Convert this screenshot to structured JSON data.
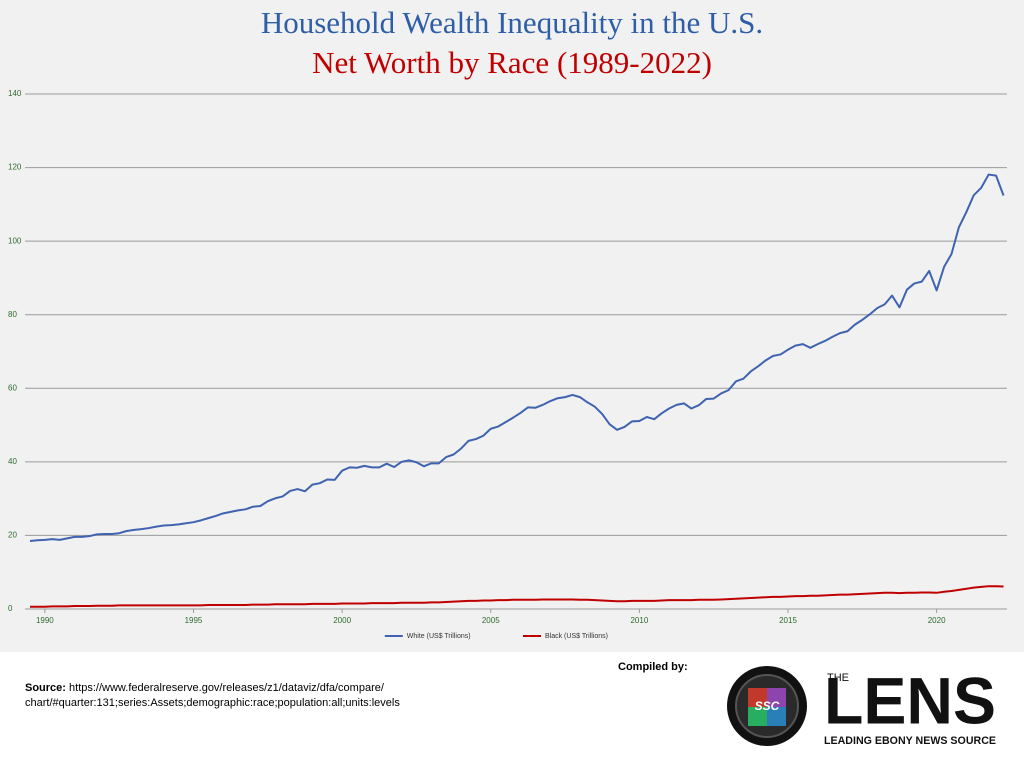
{
  "chart_data": {
    "type": "line",
    "title": "Household Wealth Inequality in the U.S.",
    "subtitle": "Net Worth by Race (1989-2022)",
    "x": [
      1989.5,
      1989.75,
      1990,
      1990.25,
      1990.5,
      1990.75,
      1991,
      1991.25,
      1991.5,
      1991.75,
      1992,
      1992.25,
      1992.5,
      1992.75,
      1993,
      1993.25,
      1993.5,
      1993.75,
      1994,
      1994.25,
      1994.5,
      1994.75,
      1995,
      1995.25,
      1995.5,
      1995.75,
      1996,
      1996.25,
      1996.5,
      1996.75,
      1997,
      1997.25,
      1997.5,
      1997.75,
      1998,
      1998.25,
      1998.5,
      1998.75,
      1999,
      1999.25,
      1999.5,
      1999.75,
      2000,
      2000.25,
      2000.5,
      2000.75,
      2001,
      2001.25,
      2001.5,
      2001.75,
      2002,
      2002.25,
      2002.5,
      2002.75,
      2003,
      2003.25,
      2003.5,
      2003.75,
      2004,
      2004.25,
      2004.5,
      2004.75,
      2005,
      2005.25,
      2005.5,
      2005.75,
      2006,
      2006.25,
      2006.5,
      2006.75,
      2007,
      2007.25,
      2007.5,
      2007.75,
      2008,
      2008.25,
      2008.5,
      2008.75,
      2009,
      2009.25,
      2009.5,
      2009.75,
      2010,
      2010.25,
      2010.5,
      2010.75,
      2011,
      2011.25,
      2011.5,
      2011.75,
      2012,
      2012.25,
      2012.5,
      2012.75,
      2013,
      2013.25,
      2013.5,
      2013.75,
      2014,
      2014.25,
      2014.5,
      2014.75,
      2015,
      2015.25,
      2015.5,
      2015.75,
      2016,
      2016.25,
      2016.5,
      2016.75,
      2017,
      2017.25,
      2017.5,
      2017.75,
      2018,
      2018.25,
      2018.5,
      2018.75,
      2019,
      2019.25,
      2019.5,
      2019.75,
      2020,
      2020.25,
      2020.5,
      2020.75,
      2021,
      2021.25,
      2021.5,
      2021.75,
      2022,
      2022.25
    ],
    "series": [
      {
        "name": "White (US$ Trillions)",
        "color": "#3f63b0",
        "values": [
          18.5,
          18.7,
          18.8,
          19.0,
          18.8,
          19.2,
          19.6,
          19.6,
          19.8,
          20.3,
          20.4,
          20.4,
          20.6,
          21.2,
          21.5,
          21.7,
          22.0,
          22.4,
          22.7,
          22.8,
          23.0,
          23.3,
          23.6,
          24.1,
          24.7,
          25.3,
          26.0,
          26.4,
          26.8,
          27.1,
          27.8,
          28.0,
          29.3,
          30.1,
          30.6,
          32.1,
          32.6,
          32.0,
          33.8,
          34.2,
          35.2,
          35.1,
          37.6,
          38.5,
          38.4,
          38.9,
          38.5,
          38.5,
          39.5,
          38.6,
          40.0,
          40.4,
          39.9,
          38.8,
          39.6,
          39.6,
          41.3,
          42.0,
          43.6,
          45.7,
          46.2,
          47.1,
          49.0,
          49.6,
          50.8,
          52.0,
          53.3,
          54.8,
          54.7,
          55.5,
          56.5,
          57.3,
          57.6,
          58.2,
          57.6,
          56.2,
          55.0,
          53.0,
          50.2,
          48.7,
          49.5,
          51.0,
          51.1,
          52.2,
          51.6,
          53.2,
          54.5,
          55.5,
          55.9,
          54.5,
          55.4,
          57.1,
          57.2,
          58.6,
          59.5,
          61.9,
          62.6,
          64.6,
          66.0,
          67.6,
          68.8,
          69.2,
          70.5,
          71.6,
          72.0,
          71.0,
          72.0,
          72.9,
          74.0,
          75.0,
          75.5,
          77.3,
          78.6,
          80.1,
          81.8,
          82.8,
          85.2,
          82.0,
          86.8,
          88.5,
          89.0,
          91.9,
          86.6,
          93.0,
          96.5,
          103.8,
          107.9,
          112.5,
          114.5,
          118.1,
          117.8,
          112.4
        ]
      },
      {
        "name": "Black (US$ Trillions)",
        "color": "#c00000",
        "values": [
          0.6,
          0.6,
          0.6,
          0.7,
          0.7,
          0.7,
          0.8,
          0.8,
          0.8,
          0.9,
          0.9,
          0.9,
          1.0,
          1.0,
          1.0,
          1.0,
          1.0,
          1.0,
          1.0,
          1.0,
          1.0,
          1.0,
          1.0,
          1.0,
          1.1,
          1.1,
          1.1,
          1.1,
          1.1,
          1.1,
          1.2,
          1.2,
          1.2,
          1.3,
          1.3,
          1.3,
          1.3,
          1.3,
          1.4,
          1.4,
          1.4,
          1.4,
          1.5,
          1.5,
          1.5,
          1.5,
          1.6,
          1.6,
          1.6,
          1.6,
          1.7,
          1.7,
          1.7,
          1.7,
          1.8,
          1.8,
          1.9,
          2.0,
          2.1,
          2.2,
          2.2,
          2.3,
          2.3,
          2.4,
          2.4,
          2.5,
          2.5,
          2.5,
          2.5,
          2.6,
          2.6,
          2.6,
          2.6,
          2.6,
          2.5,
          2.5,
          2.4,
          2.3,
          2.2,
          2.1,
          2.1,
          2.2,
          2.2,
          2.2,
          2.2,
          2.3,
          2.4,
          2.4,
          2.4,
          2.4,
          2.5,
          2.5,
          2.5,
          2.6,
          2.7,
          2.8,
          2.9,
          3.0,
          3.1,
          3.2,
          3.3,
          3.3,
          3.4,
          3.5,
          3.5,
          3.6,
          3.6,
          3.7,
          3.8,
          3.9,
          3.9,
          4.0,
          4.1,
          4.2,
          4.3,
          4.4,
          4.4,
          4.3,
          4.4,
          4.4,
          4.5,
          4.5,
          4.4,
          4.7,
          4.9,
          5.2,
          5.5,
          5.8,
          6.0,
          6.2,
          6.2,
          6.1
        ]
      }
    ],
    "xlim": [
      1989.5,
      2022.3
    ],
    "xticks": [
      1990,
      1995,
      2000,
      2005,
      2010,
      2015,
      2020
    ],
    "ylim": [
      0,
      140
    ],
    "yticks": [
      0,
      20,
      40,
      60,
      80,
      100,
      120,
      140
    ],
    "grid": true,
    "legend": "bottom"
  },
  "footer": {
    "source_label": "Source:",
    "source_lines": [
      "https://www.federalreserve.gov/releases/z1/dataviz/dfa/compare/",
      "chart/#quarter:131;series:Assets;demographic:race;population:all;units:levels"
    ],
    "compiled_by": "Compiled by:",
    "logo_badge": "SSC",
    "logo_the": "THE",
    "logo_name": "LENS",
    "logo_tagline": "LEADING EBONY NEWS SOURCE"
  }
}
